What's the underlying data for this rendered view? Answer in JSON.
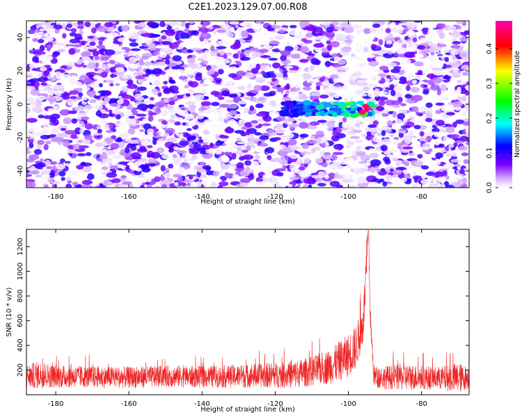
{
  "title": "C2E1.2023.129.07.00.R08",
  "chart_data": [
    {
      "type": "heatmap",
      "xlabel": "Height of straight line (km)",
      "ylabel": "Frequency (Hz)",
      "xlim": [
        -188,
        -67
      ],
      "ylim": [
        -50,
        50
      ],
      "xticks": [
        -180,
        -160,
        -140,
        -120,
        -100,
        -80
      ],
      "yticks": [
        -40,
        -20,
        0,
        20,
        40
      ],
      "colorbar": {
        "label": "Normalized spectral amplitude",
        "range": [
          0,
          0.48
        ],
        "ticks": [
          "0.0",
          "0.1",
          "0.2",
          "0.3",
          "0.4"
        ],
        "colormap": [
          "#ffffff",
          "#7b00ff",
          "#0000ff",
          "#00ffff",
          "#00ff00",
          "#ffff00",
          "#ff0000",
          "#ff00aa"
        ]
      },
      "features": {
        "background_max_amplitude": 0.1,
        "signal_band": {
          "x_range": [
            -118,
            -93
          ],
          "frequency_hz": -3,
          "peak_amplitude": 0.45,
          "peak_x": -95
        },
        "low_noise_gap_x": [
          -101,
          -95
        ]
      }
    },
    {
      "type": "line",
      "xlabel": "Height of straight line (km)",
      "ylabel": "SNR (10 * v/v)",
      "xlim": [
        -188,
        -67
      ],
      "ylim": [
        0,
        1340
      ],
      "xticks": [
        -180,
        -160,
        -140,
        -120,
        -100,
        -80
      ],
      "yticks": [
        200,
        400,
        600,
        800,
        1000,
        1200
      ],
      "color": "#ee2222",
      "series": [
        {
          "x": [
            -188,
            -185,
            -180,
            -170,
            -160,
            -150,
            -140,
            -130,
            -120,
            -115,
            -110,
            -105,
            -102,
            -100,
            -98,
            -96,
            -95,
            -94.5,
            -94,
            -93,
            -92,
            -90,
            -85,
            -80,
            -75,
            -70,
            -67
          ],
          "y_baseline": [
            150,
            160,
            150,
            145,
            140,
            150,
            145,
            150,
            160,
            165,
            190,
            230,
            280,
            320,
            380,
            560,
            1050,
            1330,
            620,
            150,
            140,
            140,
            145,
            140,
            135,
            135,
            140
          ],
          "y_spread": [
            180,
            200,
            170,
            160,
            160,
            160,
            160,
            170,
            190,
            200,
            220,
            260,
            300,
            320,
            330,
            300,
            260,
            200,
            180,
            170,
            160,
            170,
            200,
            180,
            170,
            230,
            160
          ]
        }
      ]
    }
  ]
}
